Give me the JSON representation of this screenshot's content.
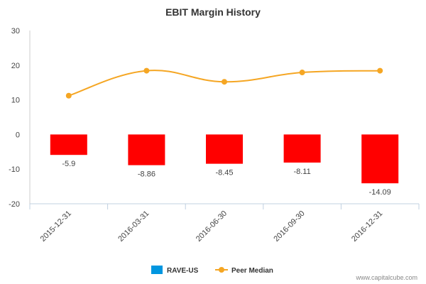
{
  "chart_data": {
    "type": "bar",
    "title": "EBIT Margin History",
    "categories": [
      "2015-12-31",
      "2016-03-31",
      "2016-06-30",
      "2016-09-30",
      "2016-12-31"
    ],
    "series": [
      {
        "name": "RAVE-US",
        "kind": "bar",
        "values": [
          -5.9,
          -8.86,
          -8.45,
          -8.11,
          -14.09
        ],
        "data_labels": [
          "-5.9",
          "-8.86",
          "-8.45",
          "-8.11",
          "-14.09"
        ],
        "legend_color": "#0096e0",
        "bar_color": "#ff0000"
      },
      {
        "name": "Peer Median",
        "kind": "line",
        "values": [
          11.2,
          18.4,
          15.2,
          17.9,
          18.4
        ],
        "color": "#f5a623"
      }
    ],
    "ylim": [
      -20,
      30
    ],
    "yticks": [
      -20,
      -10,
      0,
      10,
      20,
      30
    ],
    "ytick_labels": [
      "-20",
      "-10",
      "0",
      "10",
      "20",
      "30"
    ],
    "grid": false,
    "legend_position": "bottom-center"
  },
  "credit": "www.capitalcube.com"
}
